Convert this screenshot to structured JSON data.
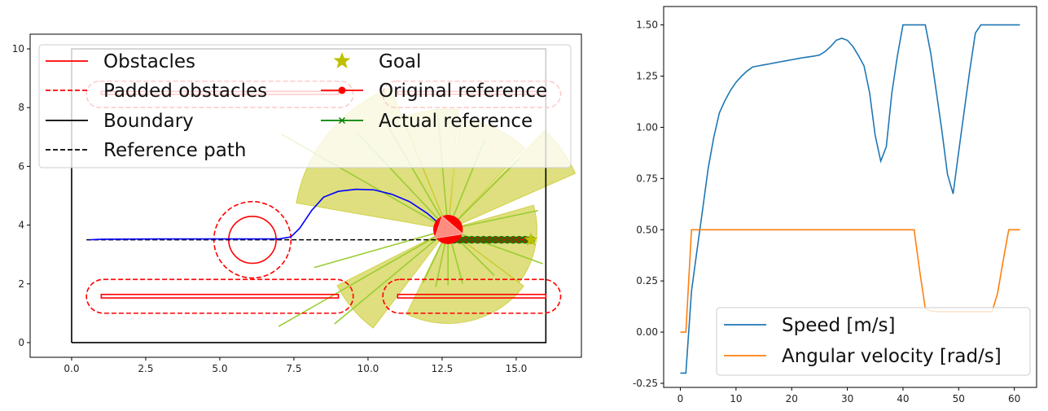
{
  "chart_data": [
    {
      "type": "scatter",
      "xlim": [
        -1.4,
        17.2
      ],
      "ylim": [
        -0.5,
        10.5
      ],
      "x_ticks": [
        "0.0",
        "2.5",
        "5.0",
        "7.5",
        "10.0",
        "12.5",
        "15.0"
      ],
      "y_ticks": [
        "0",
        "2",
        "4",
        "6",
        "8",
        "10"
      ],
      "legend": {
        "placement": "top",
        "entries": [
          "Obstacles",
          "Padded obstacles",
          "Boundary",
          "Reference path",
          "Goal",
          "Original reference",
          "Actual reference"
        ]
      },
      "colors": {
        "obstacle": "#ff0000",
        "boundary": "#000000",
        "trajectory": "#0000ff",
        "goal": "#bfbf00",
        "actual_reference": "#008000",
        "sensor": "#bfbf00",
        "ray": "#9acd32"
      },
      "boundary": [
        [
          0,
          0
        ],
        [
          16,
          0
        ],
        [
          16,
          10
        ],
        [
          0,
          10
        ],
        [
          0,
          0
        ]
      ],
      "obstacles": {
        "circle": {
          "center": [
            6.1,
            3.5
          ],
          "radius": 0.8,
          "padded_radius": 1.3
        },
        "bars": [
          {
            "x0": 1.0,
            "x1": 9.0,
            "y0": 1.52,
            "y1": 1.64,
            "padded": [
              0.5,
              9.5,
              1.0,
              2.15
            ]
          },
          {
            "x0": 11.0,
            "x1": 16.0,
            "y0": 1.52,
            "y1": 1.64,
            "padded": [
              10.5,
              16.5,
              1.0,
              2.15
            ]
          },
          {
            "x0": 1.0,
            "x1": 9.0,
            "y0": 8.45,
            "y1": 8.55,
            "padded": [
              0.5,
              9.5,
              8.0,
              8.9
            ]
          },
          {
            "x0": 11.0,
            "x1": 16.0,
            "y0": 8.45,
            "y1": 8.55,
            "padded": [
              10.5,
              16.5,
              8.0,
              8.9
            ]
          }
        ]
      },
      "reference_path": [
        [
          0.5,
          3.5
        ],
        [
          15.5,
          3.5
        ]
      ],
      "trajectory": [
        [
          0.6,
          3.5
        ],
        [
          1.0,
          3.52
        ],
        [
          3.0,
          3.53
        ],
        [
          5.0,
          3.53
        ],
        [
          7.0,
          3.53
        ],
        [
          7.4,
          3.6
        ],
        [
          7.7,
          3.9
        ],
        [
          8.1,
          4.5
        ],
        [
          8.5,
          4.95
        ],
        [
          9.0,
          5.15
        ],
        [
          9.6,
          5.22
        ],
        [
          10.2,
          5.2
        ],
        [
          10.8,
          5.05
        ],
        [
          11.4,
          4.8
        ],
        [
          12.0,
          4.4
        ],
        [
          12.4,
          4.05
        ],
        [
          12.7,
          3.85
        ]
      ],
      "robot": {
        "x": 12.7,
        "y": 3.85,
        "radius": 0.5
      },
      "goal": [
        15.5,
        3.5
      ],
      "actual_reference_x": [
        12.9,
        13.1,
        13.3,
        13.5,
        13.7,
        13.9,
        14.1,
        14.3,
        14.5,
        14.7,
        14.9,
        15.1,
        15.3,
        15.5
      ],
      "sensor_wedges": [
        {
          "a0": 112,
          "a1": 170,
          "r": 5.2
        },
        {
          "a0": 207,
          "a1": 233,
          "r": 4.2
        },
        {
          "a0": 244,
          "a1": 323,
          "r": 3.2
        },
        {
          "a0": 323,
          "a1": 376,
          "r": 3.0
        },
        {
          "a0": 24,
          "a1": 46,
          "r": 4.7
        },
        {
          "a0": 47,
          "a1": 84,
          "r": 3.8
        },
        {
          "a0": 85,
          "a1": 112,
          "r": 4.1
        }
      ],
      "sensor_rays": [
        {
          "angle": 150,
          "r": 6.5
        },
        {
          "angle": 196,
          "r": 4.7
        },
        {
          "angle": 210,
          "r": 6.6
        },
        {
          "angle": 220,
          "r": 5.0
        },
        {
          "angle": 245,
          "r": 2.0
        },
        {
          "angle": 258,
          "r": 2.0
        },
        {
          "angle": 270,
          "r": 1.9
        },
        {
          "angle": 285,
          "r": 1.9
        },
        {
          "angle": 315,
          "r": 2.2
        },
        {
          "angle": 340,
          "r": 3.4
        },
        {
          "angle": 12,
          "r": 3.1
        },
        {
          "angle": 45,
          "r": 3.4
        },
        {
          "angle": 68,
          "r": 3.3
        },
        {
          "angle": 95,
          "r": 4.1
        },
        {
          "angle": 120,
          "r": 4.5
        },
        {
          "angle": 133,
          "r": 4.5
        }
      ]
    },
    {
      "type": "line",
      "xlim": [
        -3,
        64
      ],
      "ylim": [
        -0.27,
        1.59
      ],
      "x_ticks": [
        "0",
        "10",
        "20",
        "30",
        "40",
        "50",
        "60"
      ],
      "y_ticks": [
        "-0.25",
        "0.00",
        "0.25",
        "0.50",
        "0.75",
        "1.00",
        "1.25",
        "1.50"
      ],
      "legend": {
        "placement": "lower right"
      },
      "series": [
        {
          "name": "Speed [m/s]",
          "color": "#1f77b4",
          "x": [
            0,
            1,
            2,
            3,
            4,
            5,
            6,
            7,
            8,
            9,
            10,
            11,
            12,
            13,
            14,
            15,
            16,
            17,
            18,
            19,
            20,
            21,
            22,
            23,
            24,
            25,
            26,
            27,
            28,
            29,
            30,
            31,
            32,
            33,
            34,
            35,
            36,
            37,
            38,
            39,
            40,
            41,
            42,
            43,
            44,
            45,
            46,
            47,
            48,
            49,
            50,
            51,
            52,
            53,
            54,
            55,
            56,
            57,
            58,
            59,
            60,
            61
          ],
          "values": [
            -0.2,
            -0.2,
            0.2,
            0.4,
            0.6,
            0.8,
            0.95,
            1.07,
            1.13,
            1.18,
            1.22,
            1.25,
            1.275,
            1.295,
            1.3,
            1.305,
            1.31,
            1.315,
            1.32,
            1.325,
            1.33,
            1.335,
            1.34,
            1.344,
            1.348,
            1.353,
            1.37,
            1.395,
            1.425,
            1.435,
            1.425,
            1.395,
            1.35,
            1.3,
            1.17,
            0.96,
            0.835,
            0.905,
            1.17,
            1.35,
            1.5,
            1.5,
            1.5,
            1.5,
            1.5,
            1.36,
            1.17,
            0.98,
            0.77,
            0.675,
            0.88,
            1.08,
            1.28,
            1.46,
            1.5,
            1.5,
            1.5,
            1.5,
            1.5,
            1.5,
            1.5,
            1.5
          ]
        },
        {
          "name": "Angular velocity [rad/s]",
          "color": "#ff7f0e",
          "x": [
            0,
            1,
            2,
            3,
            4,
            5,
            10,
            20,
            30,
            40,
            41,
            42,
            43,
            44,
            45,
            46,
            50,
            55,
            56,
            57,
            58,
            59,
            60,
            61
          ],
          "values": [
            0.0,
            0.0,
            0.5,
            0.5,
            0.5,
            0.5,
            0.5,
            0.5,
            0.5,
            0.5,
            0.5,
            0.5,
            0.3,
            0.115,
            0.103,
            0.1,
            0.1,
            0.1,
            0.1,
            0.19,
            0.35,
            0.5,
            0.5,
            0.5
          ]
        }
      ]
    }
  ]
}
